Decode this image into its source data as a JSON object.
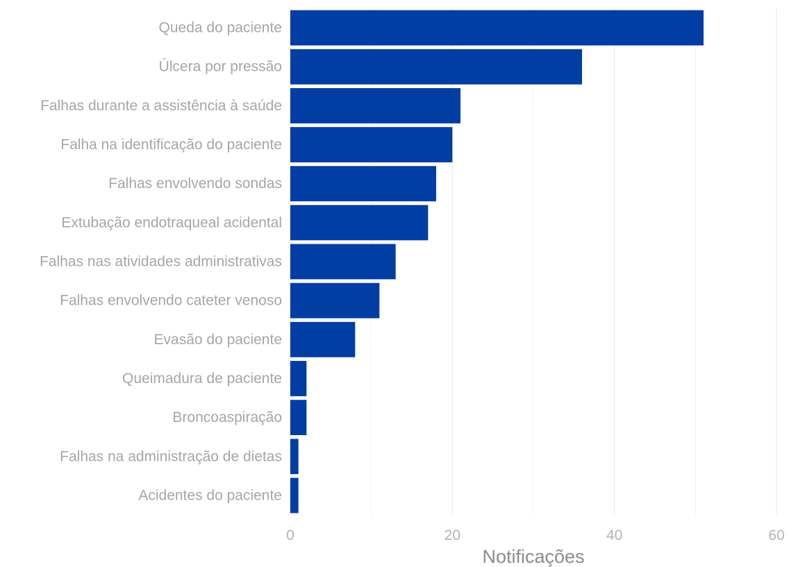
{
  "chart_data": {
    "type": "bar",
    "orientation": "horizontal",
    "categories": [
      "Queda do paciente",
      "Úlcera por pressão",
      "Falhas durante a assistência à saúde",
      "Falha na identificação do paciente",
      "Falhas envolvendo sondas",
      "Extubação endotraqueal acidental",
      "Falhas nas atividades administrativas",
      "Falhas envolvendo cateter venoso",
      "Evasão do paciente",
      "Queimadura de paciente",
      "Broncoaspiração",
      "Falhas na administração de dietas",
      "Acidentes do paciente"
    ],
    "values": [
      51,
      36,
      21,
      20,
      18,
      17,
      13,
      11,
      8,
      2,
      2,
      1,
      1
    ],
    "xlabel": "Notificações",
    "ylabel": "",
    "xlim": [
      0,
      60
    ],
    "xticks": [
      "0",
      "20",
      "40",
      "60"
    ],
    "grid": true,
    "bar_color": "#003ea3",
    "grid_color": "#ebebeb"
  }
}
